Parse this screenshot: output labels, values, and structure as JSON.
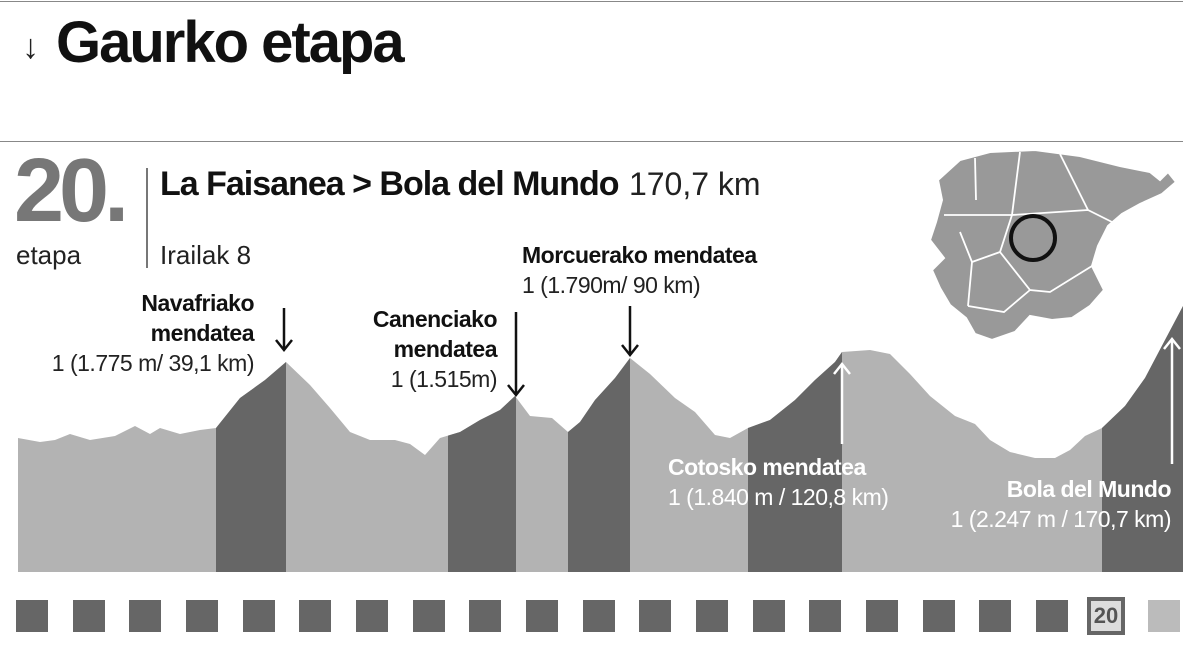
{
  "header": {
    "title": "Gaurko etapa"
  },
  "stage": {
    "number": "20.",
    "word": "etapa",
    "route": "La Faisanea > Bola del Mundo",
    "distance": "170,7 km",
    "date": "Irailak 8"
  },
  "climbs": [
    {
      "name_lines": [
        "Navafriako",
        "mendatea"
      ],
      "detail": "1 (1.775 m/ 39,1 km)"
    },
    {
      "name_lines": [
        "Canenciako",
        "mendatea"
      ],
      "detail": "1 (1.515m)"
    },
    {
      "name_lines": [
        "Morcuerako mendatea"
      ],
      "detail": "1 (1.790m/ 90 km)"
    },
    {
      "name_lines": [
        "Cotosko mendatea"
      ],
      "detail": "1 (1.840 m / 120,8 km)"
    },
    {
      "name_lines": [
        "Bola del Mundo"
      ],
      "detail": "1 (2.247 m / 170,7 km)"
    }
  ],
  "stage_tracker": {
    "total_stages": 21,
    "current_stage": "20"
  },
  "colors": {
    "profile_light": "#b3b3b3",
    "profile_dark": "#666666",
    "map_fill": "#999999",
    "text": "#111111"
  }
}
